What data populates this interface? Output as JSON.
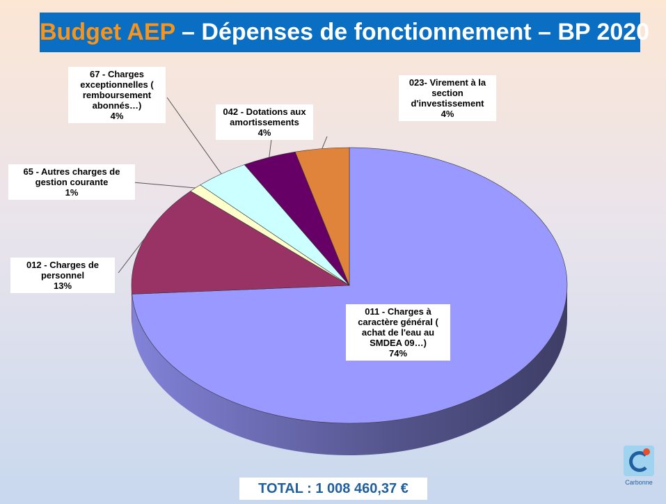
{
  "chart_data": {
    "type": "pie",
    "title_highlight": "Budget AEP",
    "title": "– Dépenses de fonctionnement – BP 2020",
    "categories": [
      "011 - Charges à caractère général ( achat de l'eau au SMDEA 09…)",
      "012 - Charges de personnel",
      "65 - Autres charges de gestion courante",
      "67 - Charges exceptionnelles ( remboursement abonnés…)",
      "042 - Dotations aux amortissements",
      "023- Virement à la section d'investissement"
    ],
    "values": [
      74,
      13,
      1,
      4,
      4,
      4
    ],
    "value_labels": [
      "74%",
      "13%",
      "1%",
      "4%",
      "4%",
      "4%"
    ],
    "colors": [
      "#9999ff",
      "#993366",
      "#ffffcc",
      "#ccffff",
      "#660066",
      "#e0843c"
    ],
    "total": "TOTAL : 1 008 460,37 €",
    "logo_text": "Carbonne"
  }
}
